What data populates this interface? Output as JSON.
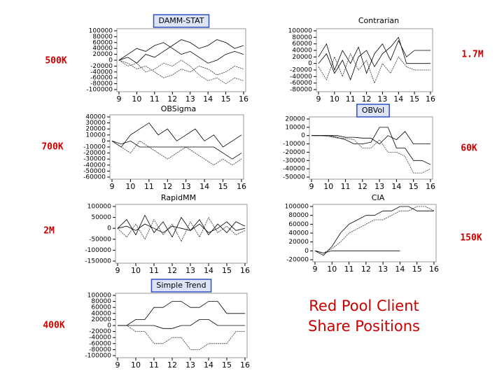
{
  "caption": [
    "Red Pool Client",
    "Share Positions"
  ],
  "chart_data": [
    {
      "type": "line",
      "title": "DAMM-STAT",
      "title_boxed": true,
      "annotation": "500K",
      "x": [
        9,
        9.5,
        10,
        10.5,
        11,
        11.5,
        12,
        12.5,
        13,
        13.5,
        14,
        14.5,
        15,
        15.5,
        16
      ],
      "xlim": [
        9,
        16
      ],
      "xticks": [
        9,
        10,
        11,
        12,
        13,
        14,
        15,
        16
      ],
      "ylim": [
        -100000,
        100000
      ],
      "yticks": [
        100000,
        80000,
        60000,
        40000,
        20000,
        0,
        -20000,
        -40000,
        -60000,
        -80000,
        -100000
      ],
      "series": [
        {
          "color": "#000000",
          "values": [
            0,
            20000,
            40000,
            30000,
            50000,
            60000,
            40000,
            20000,
            30000,
            10000,
            -10000,
            0,
            20000,
            30000,
            20000
          ]
        },
        {
          "color": "#333333",
          "values": [
            0,
            -10000,
            -30000,
            -20000,
            -40000,
            -60000,
            -50000,
            -30000,
            -40000,
            -20000,
            -30000,
            -50000,
            -40000,
            -20000,
            -30000
          ]
        },
        {
          "color": "#000000",
          "values": [
            0,
            10000,
            -10000,
            20000,
            10000,
            30000,
            50000,
            70000,
            60000,
            40000,
            50000,
            70000,
            60000,
            40000,
            50000
          ]
        },
        {
          "color": "#444444",
          "values": [
            0,
            -20000,
            -10000,
            -40000,
            -30000,
            -10000,
            -20000,
            0,
            -20000,
            -50000,
            -70000,
            -60000,
            -80000,
            -60000,
            -70000
          ]
        }
      ]
    },
    {
      "type": "line",
      "title": "Contrarian",
      "title_boxed": false,
      "annotation": "1.7M",
      "x": [
        9,
        9.5,
        10,
        10.5,
        11,
        11.5,
        12,
        12.5,
        13,
        13.5,
        14,
        14.5,
        15,
        15.5,
        16
      ],
      "xlim": [
        9,
        16
      ],
      "xticks": [
        9,
        10,
        11,
        12,
        13,
        14,
        15,
        16
      ],
      "ylim": [
        -80000,
        100000
      ],
      "yticks": [
        100000,
        80000,
        60000,
        40000,
        20000,
        0,
        -20000,
        -40000,
        -60000,
        -80000
      ],
      "series": [
        {
          "color": "#000000",
          "values": [
            20000,
            60000,
            -20000,
            40000,
            0,
            50000,
            -30000,
            30000,
            60000,
            10000,
            70000,
            20000,
            40000,
            40000,
            40000
          ]
        },
        {
          "color": "#333333",
          "values": [
            -10000,
            -50000,
            20000,
            -40000,
            30000,
            -20000,
            10000,
            -60000,
            0,
            -30000,
            20000,
            -10000,
            -20000,
            -20000,
            -20000
          ]
        },
        {
          "color": "#000000",
          "values": [
            0,
            30000,
            -30000,
            10000,
            -50000,
            20000,
            40000,
            -10000,
            30000,
            50000,
            80000,
            0,
            0,
            0,
            0
          ]
        }
      ]
    },
    {
      "type": "line",
      "title": "OBSigma",
      "title_boxed": false,
      "annotation": "700K",
      "x": [
        9,
        9.5,
        10,
        10.5,
        11,
        11.5,
        12,
        12.5,
        13,
        13.5,
        14,
        14.5,
        15,
        15.5,
        16
      ],
      "xlim": [
        9,
        16
      ],
      "xticks": [
        9,
        10,
        11,
        12,
        13,
        14,
        15,
        16
      ],
      "ylim": [
        -60000,
        40000
      ],
      "yticks": [
        40000,
        30000,
        20000,
        10000,
        0,
        -10000,
        -20000,
        -30000,
        -40000,
        -50000,
        -60000
      ],
      "series": [
        {
          "color": "#000000",
          "values": [
            0,
            -10000,
            10000,
            20000,
            30000,
            10000,
            20000,
            0,
            10000,
            20000,
            0,
            10000,
            -10000,
            0,
            10000
          ]
        },
        {
          "color": "#333333",
          "values": [
            0,
            -10000,
            -20000,
            0,
            -10000,
            -20000,
            -30000,
            -20000,
            -10000,
            -20000,
            -30000,
            -40000,
            -30000,
            -40000,
            -30000
          ]
        },
        {
          "color": "#000000",
          "values": [
            0,
            -5000,
            0,
            -10000,
            -10000,
            -10000,
            -10000,
            -10000,
            -10000,
            -10000,
            -10000,
            -10000,
            -20000,
            -30000,
            -20000
          ]
        }
      ]
    },
    {
      "type": "line",
      "title": "OBVol",
      "title_boxed": true,
      "annotation": "60K",
      "x": [
        9,
        9.5,
        10,
        10.5,
        11,
        11.5,
        12,
        12.5,
        13,
        13.5,
        14,
        14.5,
        15,
        15.5,
        16
      ],
      "xlim": [
        9,
        16
      ],
      "xticks": [
        9,
        10,
        11,
        12,
        13,
        14,
        15,
        16
      ],
      "ylim": [
        -50000,
        20000
      ],
      "yticks": [
        20000,
        10000,
        0,
        -10000,
        -20000,
        -30000,
        -40000,
        -50000
      ],
      "series": [
        {
          "color": "#000000",
          "values": [
            0,
            0,
            0,
            -2000,
            -5000,
            -10000,
            -10000,
            -8000,
            10000,
            10000,
            -15000,
            -15000,
            -30000,
            -30000,
            -35000
          ]
        },
        {
          "color": "#444444",
          "values": [
            0,
            0,
            -1000,
            -3000,
            -3000,
            -5000,
            -15000,
            -15000,
            -5000,
            -20000,
            -20000,
            -25000,
            -45000,
            -45000,
            -40000
          ]
        },
        {
          "color": "#000000",
          "values": [
            0,
            0,
            0,
            0,
            -2000,
            -2000,
            -3000,
            -3000,
            -10000,
            0,
            -5000,
            5000,
            -10000,
            -10000,
            -10000
          ]
        }
      ]
    },
    {
      "type": "line",
      "title": "RapidMM",
      "title_boxed": false,
      "annotation": "2M",
      "x": [
        9,
        9.5,
        10,
        10.5,
        11,
        11.5,
        12,
        12.5,
        13,
        13.5,
        14,
        14.5,
        15,
        15.5,
        16
      ],
      "xlim": [
        9,
        16
      ],
      "xticks": [
        9,
        10,
        11,
        12,
        13,
        14,
        15,
        16
      ],
      "ylim": [
        -150000,
        100000
      ],
      "yticks": [
        100000,
        50000,
        0,
        -50000,
        -100000,
        -150000
      ],
      "series": [
        {
          "color": "#000000",
          "values": [
            0,
            40000,
            -30000,
            60000,
            -20000,
            30000,
            -40000,
            50000,
            -10000,
            40000,
            -30000,
            20000,
            -20000,
            30000,
            10000
          ]
        },
        {
          "color": "#333333",
          "values": [
            0,
            -40000,
            20000,
            -50000,
            40000,
            -30000,
            20000,
            -60000,
            30000,
            -40000,
            50000,
            -20000,
            10000,
            -30000,
            -10000
          ]
        },
        {
          "color": "#000000",
          "values": [
            0,
            10000,
            -10000,
            20000,
            0,
            -20000,
            10000,
            0,
            -10000,
            20000,
            -20000,
            0,
            30000,
            -10000,
            0
          ]
        }
      ]
    },
    {
      "type": "line",
      "title": "CIA",
      "title_boxed": false,
      "annotation": "150K",
      "x": [
        9,
        9.5,
        10,
        10.5,
        11,
        11.5,
        12,
        12.5,
        13,
        13.5,
        14,
        14.5,
        15,
        15.5,
        16
      ],
      "xlim": [
        9,
        16
      ],
      "xticks": [
        9,
        10,
        11,
        12,
        13,
        14,
        15,
        16
      ],
      "ylim": [
        -20000,
        100000
      ],
      "yticks": [
        100000,
        80000,
        60000,
        40000,
        20000,
        0,
        -20000
      ],
      "series": [
        {
          "color": "#000000",
          "values": [
            0,
            -10000,
            10000,
            40000,
            60000,
            70000,
            80000,
            80000,
            90000,
            90000,
            100000,
            100000,
            90000,
            90000,
            90000
          ]
        },
        {
          "color": "#333333",
          "values": [
            0,
            -5000,
            5000,
            20000,
            40000,
            50000,
            60000,
            70000,
            70000,
            80000,
            90000,
            90000,
            100000,
            100000,
            90000
          ]
        },
        {
          "color": "#000000",
          "values": [
            0,
            -5000,
            0,
            0,
            0,
            0,
            0,
            0,
            0,
            0,
            0,
            null,
            null,
            null,
            null
          ]
        }
      ]
    },
    {
      "type": "line",
      "title": "Simple Trend",
      "title_boxed": true,
      "annotation": "400K",
      "x": [
        9,
        9.5,
        10,
        10.5,
        11,
        11.5,
        12,
        12.5,
        13,
        13.5,
        14,
        14.5,
        15,
        15.5,
        16
      ],
      "xlim": [
        9,
        16
      ],
      "xticks": [
        9,
        10,
        11,
        12,
        13,
        14,
        15,
        16
      ],
      "ylim": [
        -100000,
        100000
      ],
      "yticks": [
        100000,
        80000,
        60000,
        40000,
        20000,
        0,
        -20000,
        -40000,
        -60000,
        -80000,
        -100000
      ],
      "series": [
        {
          "color": "#000000",
          "values": [
            0,
            0,
            20000,
            20000,
            60000,
            60000,
            80000,
            80000,
            60000,
            60000,
            80000,
            80000,
            40000,
            40000,
            40000
          ]
        },
        {
          "color": "#333333",
          "values": [
            0,
            0,
            -20000,
            -20000,
            -60000,
            -60000,
            -40000,
            -40000,
            -80000,
            -80000,
            -60000,
            -60000,
            -60000,
            -20000,
            -20000
          ]
        },
        {
          "color": "#000000",
          "values": [
            0,
            0,
            0,
            0,
            0,
            -10000,
            -10000,
            0,
            0,
            20000,
            20000,
            0,
            0,
            0,
            0
          ]
        }
      ]
    }
  ]
}
